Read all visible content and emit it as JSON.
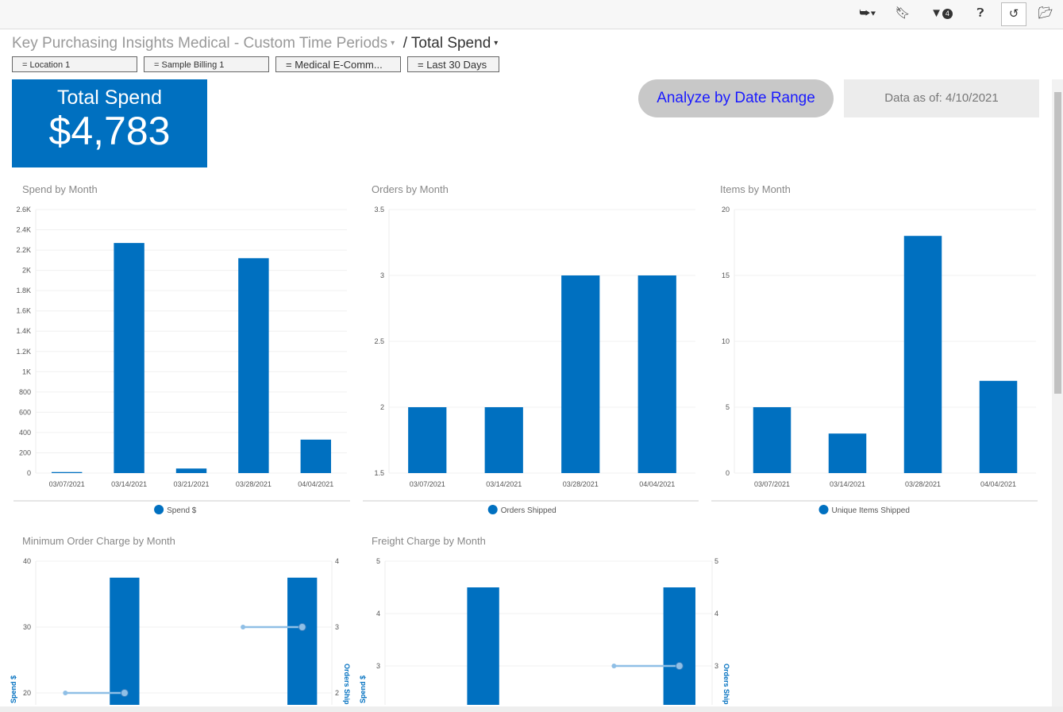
{
  "toolbar": {
    "icons": [
      "export-icon",
      "bookmark-icon",
      "filter-icon",
      "help-icon",
      "refresh-icon",
      "folder-icon"
    ],
    "filter_count": "4"
  },
  "breadcrumb": {
    "parent": "Key Purchasing Insights Medical - Custom Time Periods",
    "separator": "/",
    "current": "Total Spend"
  },
  "filters": [
    "=      Location 1",
    "=      Sample Billing 1",
    "= Medical E-Comm...",
    "= Last 30 Days"
  ],
  "kpi": {
    "title": "Total Spend",
    "value": "$4,783"
  },
  "analyze_button": "Analyze by Date Range",
  "data_as_of": "Data as of: 4/10/2021",
  "colors": {
    "bar": "#0070c0",
    "line": "#8fbfe6",
    "kpi_bg": "#0070c0"
  },
  "chart_data": [
    {
      "type": "bar",
      "title": "Spend by Month",
      "categories": [
        "03/07/2021",
        "03/14/2021",
        "03/21/2021",
        "03/28/2021",
        "04/04/2021"
      ],
      "series": [
        {
          "name": "Spend $",
          "values": [
            10,
            2270,
            45,
            2120,
            330
          ]
        }
      ],
      "ylim": [
        0,
        2600
      ],
      "yticks": [
        "0",
        "200",
        "400",
        "600",
        "800",
        "1K",
        "1.2K",
        "1.4K",
        "1.6K",
        "1.8K",
        "2K",
        "2.2K",
        "2.4K",
        "2.6K"
      ],
      "legend": "bottom",
      "grid": true
    },
    {
      "type": "bar",
      "title": "Orders by Month",
      "categories": [
        "03/07/2021",
        "03/14/2021",
        "03/28/2021",
        "04/04/2021"
      ],
      "series": [
        {
          "name": "Orders Shipped",
          "values": [
            2,
            2,
            3,
            3
          ]
        }
      ],
      "ylim": [
        1.5,
        3.5
      ],
      "yticks": [
        "1.5",
        "2",
        "2.5",
        "3",
        "3.5"
      ],
      "legend": "bottom",
      "grid": true
    },
    {
      "type": "bar",
      "title": "Items by Month",
      "categories": [
        "03/07/2021",
        "03/14/2021",
        "03/28/2021",
        "04/04/2021"
      ],
      "series": [
        {
          "name": "Unique Items Shipped",
          "values": [
            5,
            3,
            18,
            7
          ]
        }
      ],
      "ylim": [
        0,
        20
      ],
      "yticks": [
        "0",
        "5",
        "10",
        "15",
        "20"
      ],
      "legend": "bottom",
      "grid": true
    },
    {
      "type": "bar+line",
      "title": "Minimum Order Charge by Month",
      "ylabel": "Spend $",
      "y2label": "Orders Ship",
      "series": [
        {
          "type": "bar",
          "values": [
            null,
            37.5,
            null,
            null,
            37.5
          ]
        },
        {
          "type": "line",
          "axis": "right",
          "values": [
            2,
            2,
            null,
            3,
            3
          ]
        }
      ],
      "ylim": [
        0,
        40
      ],
      "yticks": [
        "20",
        "30",
        "40"
      ],
      "y2lim": [
        0,
        4
      ],
      "y2ticks": [
        "2",
        "3",
        "4"
      ]
    },
    {
      "type": "bar+line",
      "title": "Freight Charge by Month",
      "ylabel": "Spend $",
      "y2label": "Orders Ship",
      "series": [
        {
          "type": "bar",
          "values": [
            null,
            4.5,
            null,
            null,
            4.5
          ]
        },
        {
          "type": "line",
          "axis": "right",
          "values": [
            null,
            null,
            null,
            3,
            3
          ]
        }
      ],
      "ylim": [
        0,
        5
      ],
      "yticks": [
        "3",
        "4",
        "5"
      ],
      "y2lim": [
        0,
        5
      ],
      "y2ticks": [
        "3",
        "4",
        "5"
      ]
    }
  ]
}
